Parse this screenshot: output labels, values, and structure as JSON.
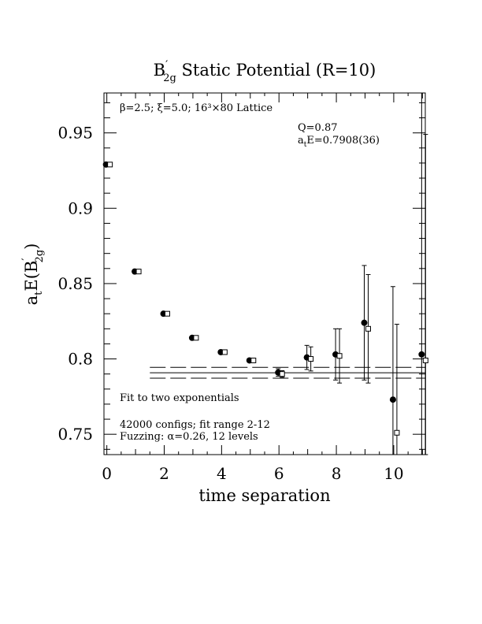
{
  "chart_data": {
    "type": "scatter",
    "title_parts": {
      "main": "B",
      "prime": "′",
      "sub": "2g",
      "rest": " Static Potential (R=10)"
    },
    "xlabel": "time separation",
    "ylabel_parts": {
      "a": "a",
      "t": "t",
      "e": "E(B",
      "prime": "′",
      "sub": "2g",
      "close": ")"
    },
    "xlim": [
      -0.1,
      11.1
    ],
    "ylim": [
      0.7365,
      0.9765
    ],
    "xticks": [
      0,
      2,
      4,
      6,
      8,
      10
    ],
    "xtick_labels": [
      "0",
      "2",
      "4",
      "6",
      "8",
      "10"
    ],
    "yticks": [
      0.75,
      0.8,
      0.85,
      0.9,
      0.95
    ],
    "ytick_labels": [
      "0.75",
      "0.8",
      "0.85",
      "0.9",
      "0.95"
    ],
    "annotations": {
      "lattice": "β=2.5; ξ=5.0; 16³×80 Lattice",
      "q": "Q=0.87",
      "ate_a": "a",
      "ate_t": "t",
      "ate_rest": "E=0.7908(36)",
      "fit_type": "Fit to two exponentials",
      "configs": "42000 configs; fit range 2-12",
      "fuzzing": "Fuzzing: α=0.26, 12 levels"
    },
    "series": [
      {
        "marker": "filled-circle",
        "points": [
          {
            "x": 0,
            "y": 0.929,
            "err": 0.0004
          },
          {
            "x": 1,
            "y": 0.858,
            "err": 0.0006
          },
          {
            "x": 2,
            "y": 0.83,
            "err": 0.0007
          },
          {
            "x": 3,
            "y": 0.814,
            "err": 0.0009
          },
          {
            "x": 4,
            "y": 0.8045,
            "err": 0.0009
          },
          {
            "x": 5,
            "y": 0.799,
            "err": 0.0012
          },
          {
            "x": 6,
            "y": 0.791,
            "err": 0.0025
          },
          {
            "x": 7,
            "y": 0.801,
            "err": 0.008
          },
          {
            "x": 8,
            "y": 0.803,
            "err": 0.017
          },
          {
            "x": 9,
            "y": 0.824,
            "err": 0.038
          },
          {
            "x": 10,
            "y": 0.773,
            "err": 0.075
          },
          {
            "x": 11,
            "y": 0.803,
            "err": 0.22
          }
        ]
      },
      {
        "marker": "open-square",
        "points": [
          {
            "x": 0,
            "y": 0.929,
            "err": 0.0004
          },
          {
            "x": 1,
            "y": 0.858,
            "err": 0.0006
          },
          {
            "x": 2,
            "y": 0.83,
            "err": 0.0007
          },
          {
            "x": 3,
            "y": 0.814,
            "err": 0.0009
          },
          {
            "x": 4,
            "y": 0.8045,
            "err": 0.0009
          },
          {
            "x": 5,
            "y": 0.799,
            "err": 0.0012
          },
          {
            "x": 6,
            "y": 0.79,
            "err": 0.0022
          },
          {
            "x": 7,
            "y": 0.8,
            "err": 0.008
          },
          {
            "x": 8,
            "y": 0.802,
            "err": 0.018
          },
          {
            "x": 9,
            "y": 0.82,
            "err": 0.036
          },
          {
            "x": 10,
            "y": 0.751,
            "err": 0.072
          },
          {
            "x": 11,
            "y": 0.799,
            "err": 0.15
          }
        ]
      }
    ],
    "fit": {
      "value": 0.7908,
      "error": 0.0036,
      "x_start": 1.5,
      "x_end": 11.1
    }
  }
}
